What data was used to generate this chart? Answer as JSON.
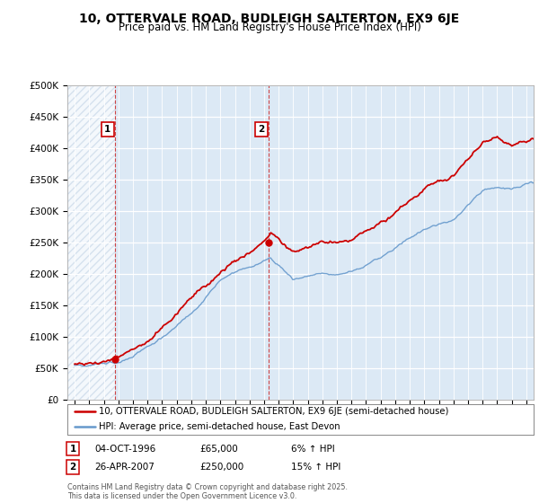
{
  "title": "10, OTTERVALE ROAD, BUDLEIGH SALTERTON, EX9 6JE",
  "subtitle": "Price paid vs. HM Land Registry's House Price Index (HPI)",
  "title_fontsize": 10,
  "subtitle_fontsize": 8.5,
  "ylim": [
    0,
    500000
  ],
  "yticks": [
    0,
    50000,
    100000,
    150000,
    200000,
    250000,
    300000,
    350000,
    400000,
    450000,
    500000
  ],
  "ytick_labels": [
    "£0",
    "£50K",
    "£100K",
    "£150K",
    "£200K",
    "£250K",
    "£300K",
    "£350K",
    "£400K",
    "£450K",
    "£500K"
  ],
  "sale1_date": 1996.76,
  "sale1_price": 65000,
  "sale1_label": "1",
  "sale2_date": 2007.32,
  "sale2_price": 250000,
  "sale2_label": "2",
  "sale1_info": "04-OCT-1996",
  "sale1_amount": "£65,000",
  "sale1_hpi": "6% ↑ HPI",
  "sale2_info": "26-APR-2007",
  "sale2_amount": "£250,000",
  "sale2_hpi": "15% ↑ HPI",
  "legend_label1": "10, OTTERVALE ROAD, BUDLEIGH SALTERTON, EX9 6JE (semi-detached house)",
  "legend_label2": "HPI: Average price, semi-detached house, East Devon",
  "line_color_paid": "#cc0000",
  "line_color_hpi": "#6699cc",
  "hatch_color": "#c8d8e8",
  "plot_bg_color": "#dce9f5",
  "footer": "Contains HM Land Registry data © Crown copyright and database right 2025.\nThis data is licensed under the Open Government Licence v3.0.",
  "xmin": 1993.5,
  "xmax": 2025.5
}
